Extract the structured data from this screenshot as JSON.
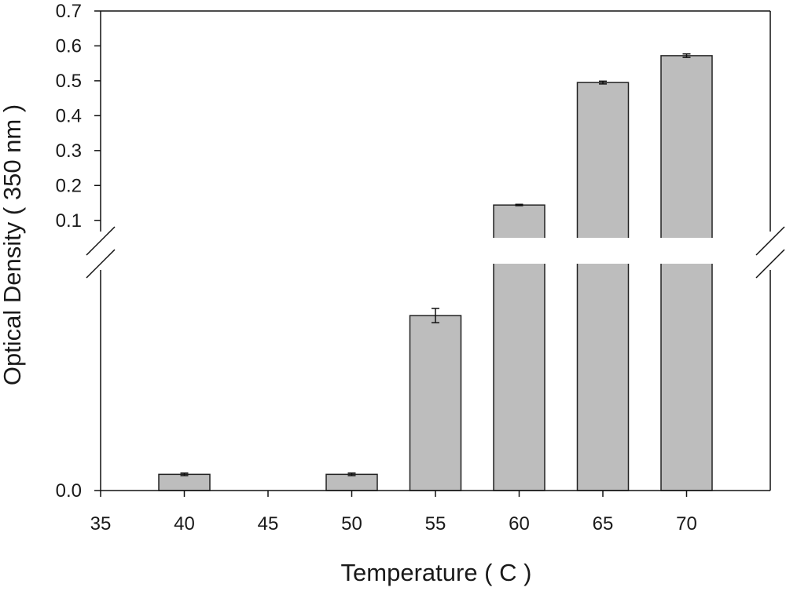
{
  "chart_data": {
    "type": "bar",
    "title": "",
    "xlabel": "Temperature ( C )",
    "ylabel": "Optical Density ( 350 nm )",
    "x": [
      40,
      45,
      50,
      55,
      60,
      65,
      70
    ],
    "values": [
      0.0025,
      0.0,
      0.0025,
      0.027,
      0.144,
      0.495,
      0.572
    ],
    "errors": [
      0.0002,
      0.0,
      0.0002,
      0.0011,
      0.002,
      0.004,
      0.005
    ],
    "xlim": [
      35,
      75
    ],
    "xticks": [
      "35",
      "40",
      "45",
      "50",
      "55",
      "60",
      "65",
      "70"
    ],
    "y_axis_break": true,
    "lower_segment": {
      "ylim": [
        0.0,
        0.035
      ],
      "tick_labels": [
        "0.0"
      ]
    },
    "upper_segment": {
      "ylim": [
        0.05,
        0.7
      ],
      "tick_labels": [
        "0.1",
        "0.2",
        "0.3",
        "0.4",
        "0.5",
        "0.6",
        "0.7"
      ]
    },
    "grid": false,
    "bar_color": "#bdbdbd",
    "edge_color": "#222222"
  }
}
